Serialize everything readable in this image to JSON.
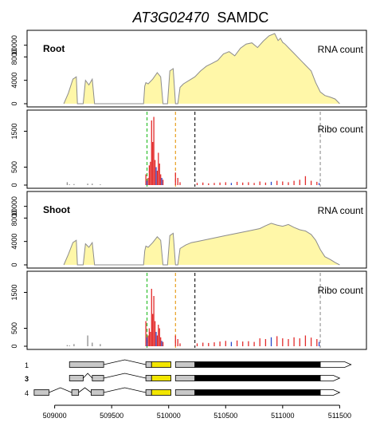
{
  "title": {
    "gene": "AT3G02470",
    "name": "SAMDC"
  },
  "colors": {
    "rna_fill": "#fff7a8",
    "rna_line": "#8c8c8c",
    "ribo_frame1": "#e32b2b",
    "ribo_frame2": "#2a46c9",
    "ribo_frame3": "#8c8c8c",
    "green_line": "#2fc02f",
    "orange_line": "#e8a020",
    "black_line": "#222222",
    "end_line": "#999999",
    "utr_gray": "#c8c8c8",
    "uorf_yellow": "#f2e600",
    "cds_black": "#000000"
  },
  "chart_data": [
    {
      "type": "area",
      "panel": "root-rna",
      "label": "Root",
      "count_label": "RNA count",
      "ylim": [
        0,
        12000
      ],
      "yticks": [
        "0",
        "4000",
        "8000",
        "10000"
      ],
      "ytick_values": [
        0,
        4000,
        8000,
        10000
      ],
      "xlim": [
        508800,
        511700
      ],
      "x": [
        509080,
        509120,
        509160,
        509190,
        509200,
        509210,
        509250,
        509270,
        509300,
        509330,
        509350,
        509380,
        509390,
        509650,
        509780,
        509790,
        509800,
        509820,
        509860,
        509900,
        509930,
        509950,
        509970,
        509990,
        510010,
        510040,
        510060,
        510080,
        510100,
        510130,
        510180,
        510230,
        510280,
        510330,
        510380,
        510430,
        510480,
        510530,
        510580,
        510630,
        510680,
        510730,
        510780,
        510830,
        510880,
        510930,
        510960,
        510980,
        511000,
        511020,
        511060,
        511100,
        511150,
        511200,
        511250,
        511290,
        511330,
        511370,
        511420,
        511460,
        511500
      ],
      "values": [
        0,
        1800,
        4200,
        4600,
        0,
        0,
        0,
        4000,
        3200,
        4200,
        0,
        0,
        0,
        0,
        0,
        3000,
        3600,
        3400,
        4200,
        5300,
        4600,
        0,
        0,
        0,
        5600,
        6000,
        0,
        0,
        2800,
        3400,
        4000,
        4600,
        5600,
        6400,
        6900,
        7400,
        8500,
        8900,
        8200,
        9500,
        10200,
        10400,
        9600,
        10700,
        11600,
        12000,
        10800,
        11200,
        10500,
        10200,
        9400,
        8600,
        7600,
        6600,
        5600,
        3600,
        2000,
        1400,
        1100,
        800,
        0
      ]
    },
    {
      "type": "bar",
      "panel": "root-ribo",
      "count_label": "Ribo count",
      "ylim": [
        0,
        2000
      ],
      "yticks": [
        "0",
        "500",
        "1500"
      ],
      "ytick_values": [
        0,
        500,
        1500
      ],
      "xlim": [
        508800,
        511700
      ],
      "markers": [
        509810,
        510060,
        510230,
        511330
      ],
      "bars": {
        "x": [
          509110,
          509130,
          509170,
          509290,
          509330,
          509400,
          509800,
          509810,
          509820,
          509830,
          509840,
          509850,
          509860,
          509870,
          509880,
          509890,
          509900,
          509910,
          509920,
          509930,
          509940,
          509950,
          510060,
          510080,
          510100,
          510250,
          510300,
          510350,
          510400,
          510450,
          510500,
          510550,
          510600,
          510650,
          510700,
          510750,
          510800,
          510850,
          510900,
          510950,
          511000,
          511050,
          511100,
          511150,
          511200,
          511250,
          511300,
          511320
        ],
        "values": [
          80,
          20,
          30,
          40,
          40,
          20,
          300,
          120,
          200,
          550,
          650,
          1800,
          1200,
          1900,
          700,
          500,
          400,
          900,
          600,
          300,
          200,
          150,
          350,
          200,
          80,
          60,
          70,
          50,
          60,
          70,
          80,
          60,
          90,
          70,
          80,
          60,
          100,
          70,
          90,
          120,
          100,
          80,
          120,
          150,
          250,
          120,
          90,
          60
        ],
        "frame": [
          3,
          3,
          3,
          3,
          3,
          3,
          1,
          2,
          1,
          1,
          1,
          1,
          1,
          1,
          1,
          2,
          1,
          1,
          1,
          1,
          2,
          1,
          1,
          1,
          1,
          1,
          1,
          1,
          1,
          1,
          1,
          2,
          1,
          1,
          1,
          1,
          1,
          1,
          2,
          1,
          1,
          1,
          1,
          1,
          1,
          1,
          1,
          2
        ]
      }
    },
    {
      "type": "area",
      "panel": "shoot-rna",
      "label": "Shoot",
      "count_label": "RNA count",
      "ylim": [
        0,
        12000
      ],
      "yticks": [
        "0",
        "4000",
        "8000",
        "10000"
      ],
      "ytick_values": [
        0,
        4000,
        8000,
        10000
      ],
      "xlim": [
        508800,
        511700
      ],
      "x": [
        509080,
        509120,
        509160,
        509190,
        509200,
        509210,
        509250,
        509270,
        509300,
        509330,
        509350,
        509380,
        509390,
        509650,
        509780,
        509790,
        509800,
        509820,
        509860,
        509900,
        509930,
        509950,
        509970,
        509990,
        510010,
        510040,
        510060,
        510080,
        510100,
        510150,
        510200,
        510250,
        510300,
        510400,
        510500,
        510600,
        510700,
        510800,
        510850,
        510900,
        510950,
        511000,
        511050,
        511100,
        511150,
        511200,
        511250,
        511290,
        511330,
        511370,
        511420,
        511460,
        511500
      ],
      "values": [
        0,
        1800,
        3800,
        4200,
        0,
        0,
        0,
        3600,
        3000,
        3800,
        0,
        0,
        0,
        0,
        0,
        2400,
        3200,
        3000,
        3800,
        4800,
        4200,
        0,
        0,
        0,
        5000,
        5400,
        0,
        0,
        2800,
        3400,
        3800,
        4000,
        4200,
        4600,
        5000,
        5400,
        5800,
        6200,
        6700,
        7100,
        6800,
        6600,
        6900,
        6400,
        6000,
        5800,
        5200,
        4200,
        2600,
        1400,
        900,
        400,
        0
      ]
    },
    {
      "type": "bar",
      "panel": "shoot-ribo",
      "count_label": "Ribo count",
      "ylim": [
        0,
        2000
      ],
      "yticks": [
        "0",
        "500",
        "1500"
      ],
      "ytick_values": [
        0,
        500,
        1500
      ],
      "xlim": [
        508800,
        511700
      ],
      "markers": [
        509810,
        510060,
        510230,
        511330
      ],
      "bars": {
        "x": [
          509110,
          509130,
          509170,
          509290,
          509330,
          509400,
          509800,
          509810,
          509820,
          509830,
          509840,
          509850,
          509860,
          509870,
          509880,
          509890,
          509900,
          509910,
          509920,
          509930,
          509940,
          509950,
          510060,
          510080,
          510100,
          510250,
          510300,
          510350,
          510400,
          510450,
          510500,
          510550,
          510600,
          510650,
          510700,
          510750,
          510800,
          510850,
          510900,
          510950,
          511000,
          511050,
          511100,
          511150,
          511200,
          511250,
          511300,
          511320
        ],
        "values": [
          30,
          20,
          60,
          300,
          100,
          60,
          700,
          250,
          300,
          500,
          400,
          1600,
          900,
          1400,
          700,
          400,
          300,
          600,
          500,
          250,
          150,
          120,
          300,
          200,
          80,
          80,
          100,
          90,
          110,
          130,
          150,
          120,
          160,
          130,
          140,
          120,
          220,
          200,
          250,
          280,
          220,
          200,
          250,
          220,
          300,
          240,
          200,
          120
        ],
        "frame": [
          3,
          3,
          3,
          3,
          3,
          3,
          1,
          2,
          1,
          1,
          1,
          1,
          1,
          1,
          1,
          2,
          1,
          1,
          1,
          1,
          2,
          1,
          1,
          1,
          1,
          1,
          1,
          1,
          1,
          1,
          1,
          2,
          1,
          1,
          1,
          1,
          1,
          1,
          2,
          1,
          1,
          1,
          1,
          1,
          1,
          1,
          1,
          2
        ]
      }
    }
  ],
  "gene_model": {
    "xlim": [
      508800,
      511700
    ],
    "xticks": [
      509000,
      509500,
      510000,
      510500,
      511000,
      511500
    ],
    "xtick_labels": [
      "509000",
      "509500",
      "510000",
      "510500",
      "511000",
      "511500"
    ],
    "transcripts": [
      {
        "label": "1",
        "bold": false,
        "utr5": [
          [
            509130,
            509430
          ],
          [
            509800,
            509850
          ]
        ],
        "uorf": [
          [
            509850,
            510020
          ]
        ],
        "utr5b": [
          [
            510060,
            510230
          ]
        ],
        "cds": [
          [
            510230,
            511330
          ]
        ],
        "utr3": [
          [
            511330,
            511600
          ]
        ]
      },
      {
        "label": "3",
        "bold": true,
        "utr5": [
          [
            509130,
            509250
          ],
          [
            509330,
            509430
          ],
          [
            509800,
            509850
          ]
        ],
        "uorf": [
          [
            509850,
            510020
          ]
        ],
        "utr5b": [
          [
            510060,
            510230
          ]
        ],
        "cds": [
          [
            510230,
            511330
          ]
        ],
        "utr3": [
          [
            511330,
            511500
          ]
        ]
      },
      {
        "label": "4",
        "bold": false,
        "utr5": [
          [
            508820,
            508950
          ],
          [
            509150,
            509210
          ],
          [
            509320,
            509430
          ],
          [
            509800,
            509850
          ]
        ],
        "uorf": [
          [
            509850,
            510020
          ]
        ],
        "utr5b": [
          [
            510060,
            510230
          ]
        ],
        "cds": [
          [
            510230,
            511330
          ]
        ],
        "utr3": [
          [
            511330,
            511500
          ]
        ]
      }
    ]
  }
}
